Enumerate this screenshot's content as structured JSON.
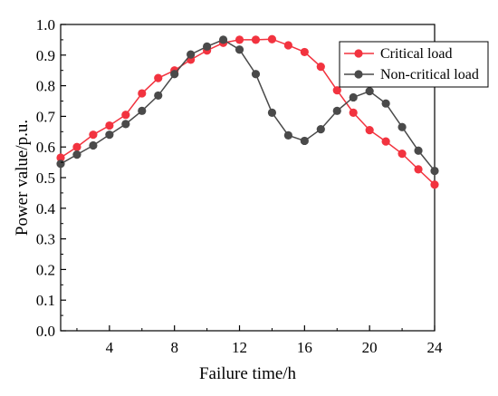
{
  "chart_data": {
    "type": "line",
    "xlabel": "Failure time/h",
    "ylabel": "Power value/p.u.",
    "xlim": [
      1,
      24
    ],
    "ylim": [
      0.0,
      1.0
    ],
    "xticks": [
      4,
      8,
      12,
      16,
      20,
      24
    ],
    "xtick_labels": [
      "4",
      "8",
      "12",
      "16",
      "20",
      "24"
    ],
    "yticks": [
      0.0,
      0.1,
      0.2,
      0.3,
      0.4,
      0.5,
      0.6,
      0.7,
      0.8,
      0.9,
      1.0
    ],
    "ytick_labels": [
      "0.0",
      "0.1",
      "0.2",
      "0.3",
      "0.4",
      "0.5",
      "0.6",
      "0.7",
      "0.8",
      "0.9",
      "1.0"
    ],
    "x": [
      1,
      2,
      3,
      4,
      5,
      6,
      7,
      8,
      9,
      10,
      11,
      12,
      13,
      14,
      15,
      16,
      17,
      18,
      19,
      20,
      21,
      22,
      23,
      24
    ],
    "legend_position": "top-right",
    "grid": false,
    "series": [
      {
        "name": "Critical load",
        "color": "#f2333f",
        "marker": "circle",
        "values": [
          0.565,
          0.6,
          0.64,
          0.67,
          0.705,
          0.775,
          0.825,
          0.85,
          0.885,
          0.915,
          0.94,
          0.95,
          0.95,
          0.952,
          0.932,
          0.91,
          0.862,
          0.785,
          0.712,
          0.655,
          0.618,
          0.578,
          0.527,
          0.477
        ]
      },
      {
        "name": "Non-critical load",
        "color": "#4a4a4a",
        "marker": "circle",
        "values": [
          0.545,
          0.575,
          0.605,
          0.64,
          0.675,
          0.718,
          0.768,
          0.838,
          0.902,
          0.928,
          0.95,
          0.918,
          0.838,
          0.712,
          0.638,
          0.62,
          0.658,
          0.718,
          0.762,
          0.782,
          0.742,
          0.665,
          0.588,
          0.522
        ]
      }
    ]
  }
}
